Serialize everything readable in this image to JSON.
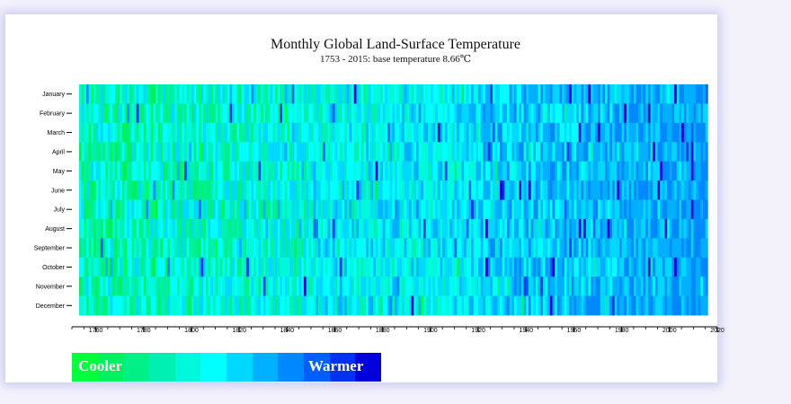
{
  "chart_data": {
    "type": "heatmap",
    "title": "Monthly Global Land-Surface Temperature",
    "subtitle": "1753 - 2015: base temperature 8.66℃",
    "base_temperature": 8.66,
    "x_range": [
      1753,
      2015
    ],
    "x_axis_limits": [
      1750,
      2020
    ],
    "x_ticks": [
      "1760",
      "1780",
      "1800",
      "1820",
      "1840",
      "1860",
      "1880",
      "1900",
      "1920",
      "1940",
      "1960",
      "1980",
      "2000",
      "2020"
    ],
    "months": [
      "January",
      "February",
      "March",
      "April",
      "May",
      "June",
      "July",
      "August",
      "September",
      "October",
      "November",
      "December"
    ],
    "grid": false,
    "legend_position": "bottom-left",
    "legend_colors": [
      "#00ff3c",
      "#00f060",
      "#00f088",
      "#00f0b4",
      "#00f8dc",
      "#00ffff",
      "#00d8ff",
      "#00b0ff",
      "#0088ff",
      "#0060ff",
      "#0030f0",
      "#0000dc"
    ],
    "legend_cool_label": "Cooler",
    "legend_warm_label": "Warmer"
  }
}
